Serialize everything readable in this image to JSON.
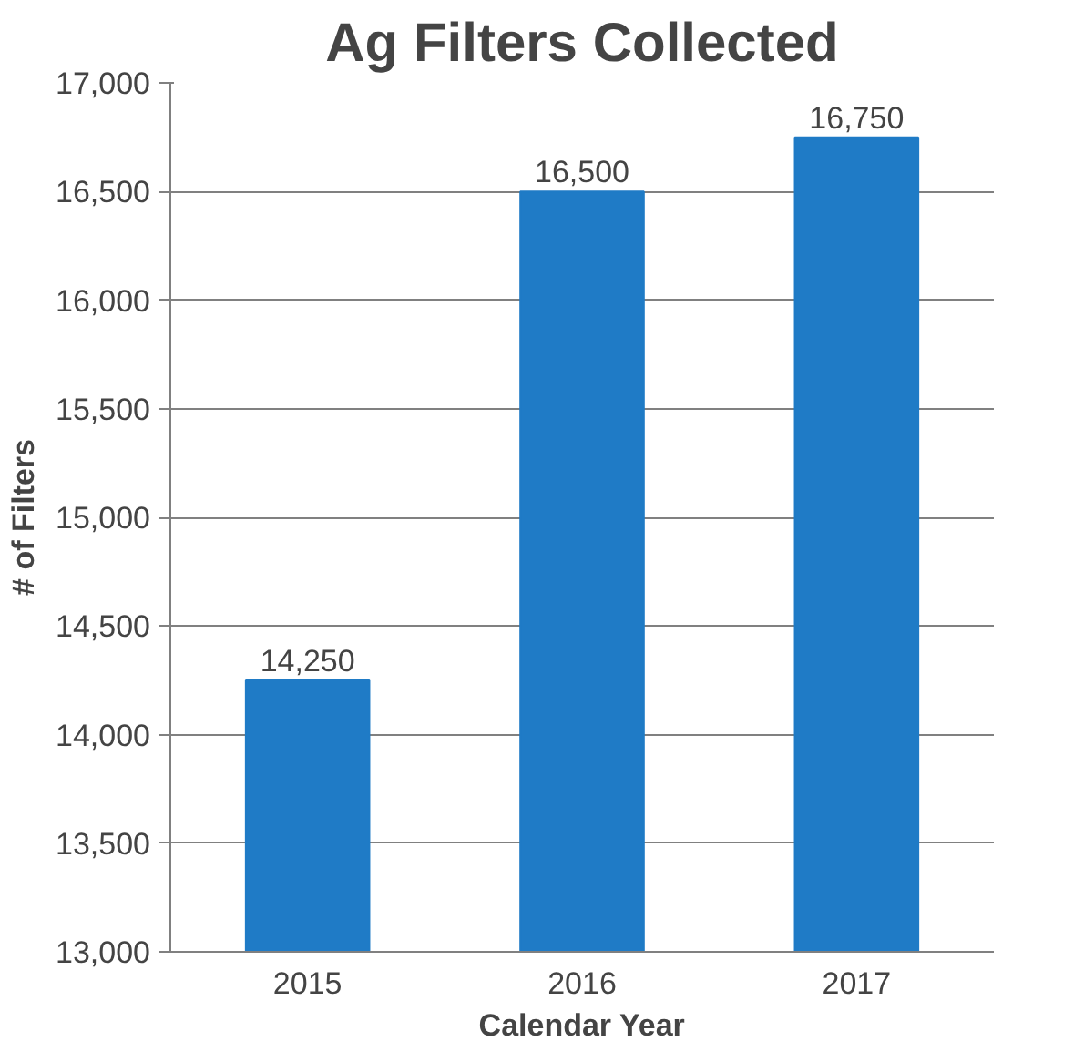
{
  "chart_data": {
    "type": "bar",
    "title": "Ag Filters Collected",
    "xlabel": "Calendar Year",
    "ylabel": "# of Filters",
    "categories": [
      "2015",
      "2016",
      "2017"
    ],
    "values": [
      14250,
      16500,
      16750
    ],
    "color": "#1f7bc6",
    "ylim": [
      13000,
      17000
    ],
    "yticks": [
      {
        "value": 13000,
        "label": "13,000"
      },
      {
        "value": 13500,
        "label": "13,500"
      },
      {
        "value": 14000,
        "label": "14,000"
      },
      {
        "value": 14500,
        "label": "14,500"
      },
      {
        "value": 15000,
        "label": "15,000"
      },
      {
        "value": 15500,
        "label": "15,500"
      },
      {
        "value": 16000,
        "label": "16,000"
      },
      {
        "value": 16500,
        "label": "16,500"
      },
      {
        "value": 17000,
        "label": "17,000"
      }
    ],
    "grid": "y",
    "value_labels": [
      "14,250",
      "16,500",
      "16,750"
    ]
  }
}
